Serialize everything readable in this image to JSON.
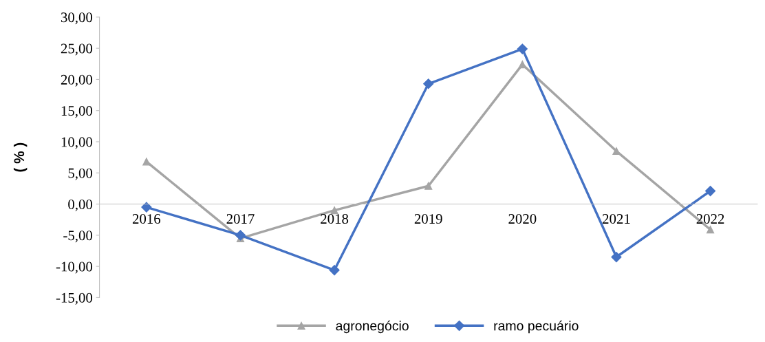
{
  "chart_data": {
    "type": "line",
    "ylabel": "( % )",
    "categories": [
      "2016",
      "2017",
      "2018",
      "2019",
      "2020",
      "2021",
      "2022"
    ],
    "series": [
      {
        "name": "agronegócio",
        "color": "#a5a5a5",
        "marker": "triangle",
        "values": [
          6.8,
          -5.5,
          -1.0,
          2.9,
          22.4,
          8.5,
          -4.1
        ]
      },
      {
        "name": "ramo pecuário",
        "color": "#4472c4",
        "marker": "diamond",
        "values": [
          -0.5,
          -5.0,
          -10.6,
          19.3,
          24.9,
          -8.5,
          2.1
        ]
      }
    ],
    "ylim": [
      -15,
      30
    ],
    "yticks": [
      {
        "value": -15,
        "label": "-15,00"
      },
      {
        "value": -10,
        "label": "-10,00"
      },
      {
        "value": -5,
        "label": "-5,00"
      },
      {
        "value": 0,
        "label": "0,00"
      },
      {
        "value": 5,
        "label": "5,00"
      },
      {
        "value": 10,
        "label": "10,00"
      },
      {
        "value": 15,
        "label": "15,00"
      },
      {
        "value": 20,
        "label": "20,00"
      },
      {
        "value": 25,
        "label": "25,00"
      },
      {
        "value": 30,
        "label": "30,00"
      }
    ],
    "grid": false,
    "legend": "bottom",
    "line_style": "solid"
  }
}
